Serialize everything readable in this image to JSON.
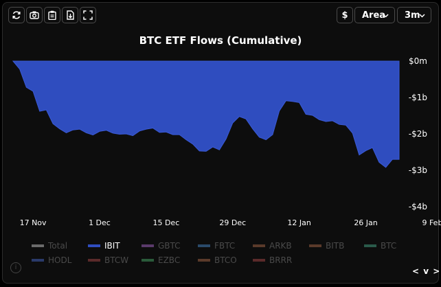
{
  "toolbar": {
    "refresh_icon": "refresh-icon",
    "camera_icon": "camera-icon",
    "clipboard_icon": "clipboard-icon",
    "download_icon": "download-file-icon",
    "fullscreen_icon": "fullscreen-icon",
    "currency_label": "$",
    "chart_type_label": "Area",
    "range_label": "3m"
  },
  "legend": {
    "row1": [
      {
        "label": "Total",
        "color": "#6a6a6a",
        "active": false
      },
      {
        "label": "IBIT",
        "color": "#2f4dbf",
        "active": true
      },
      {
        "label": "GBTC",
        "color": "#5a3a6a",
        "active": false
      },
      {
        "label": "FBTC",
        "color": "#2a4a6a",
        "active": false
      },
      {
        "label": "ARKB",
        "color": "#5a3a2a",
        "active": false
      },
      {
        "label": "BITB",
        "color": "#5a3a2a",
        "active": false
      },
      {
        "label": "BTC",
        "color": "#2a5a4a",
        "active": false
      }
    ],
    "row2": [
      {
        "label": "HODL",
        "color": "#2a3a6a",
        "active": false
      },
      {
        "label": "BTCW",
        "color": "#5a2a2a",
        "active": false
      },
      {
        "label": "EZBC",
        "color": "#2a5a3a",
        "active": false
      },
      {
        "label": "BTCO",
        "color": "#5a3a2a",
        "active": false
      },
      {
        "label": "BRRR",
        "color": "#5a2a2a",
        "active": false
      }
    ]
  },
  "pager_label": "< v >",
  "info_label": "i",
  "chart_data": {
    "type": "area",
    "title": "BTC ETF Flows (Cumulative)",
    "ylim": [
      -4,
      0
    ],
    "yticks": [
      {
        "value": 0,
        "label": "$0m"
      },
      {
        "value": -1,
        "label": "-$1b"
      },
      {
        "value": -2,
        "label": "-$2b"
      },
      {
        "value": -3,
        "label": "-$3b"
      },
      {
        "value": -4,
        "label": "-$4b"
      }
    ],
    "xticks": [
      {
        "index": 3,
        "label": "17 Nov"
      },
      {
        "index": 13,
        "label": "1 Dec"
      },
      {
        "index": 23,
        "label": "15 Dec"
      },
      {
        "index": 33,
        "label": "29 Dec"
      },
      {
        "index": 43,
        "label": "12 Jan"
      },
      {
        "index": 53,
        "label": "26 Jan"
      },
      {
        "index": 63,
        "label": "9 Feb"
      }
    ],
    "grid": false,
    "series": [
      {
        "name": "IBIT",
        "color": "#2f4dbf",
        "values": [
          0,
          -0.22,
          -0.72,
          -0.83,
          -1.38,
          -1.34,
          -1.72,
          -1.86,
          -1.97,
          -1.89,
          -1.87,
          -1.97,
          -2.03,
          -1.93,
          -1.9,
          -1.98,
          -2.01,
          -2.0,
          -2.05,
          -1.92,
          -1.87,
          -1.84,
          -1.96,
          -1.95,
          -2.02,
          -2.02,
          -2.16,
          -2.28,
          -2.47,
          -2.48,
          -2.36,
          -2.44,
          -2.14,
          -1.7,
          -1.52,
          -1.59,
          -1.86,
          -2.09,
          -2.16,
          -2.02,
          -1.37,
          -1.09,
          -1.11,
          -1.14,
          -1.46,
          -1.49,
          -1.61,
          -1.66,
          -1.64,
          -1.74,
          -1.76,
          -1.98,
          -2.58,
          -2.46,
          -2.38,
          -2.78,
          -2.92,
          -2.7,
          -2.7
        ]
      }
    ]
  }
}
